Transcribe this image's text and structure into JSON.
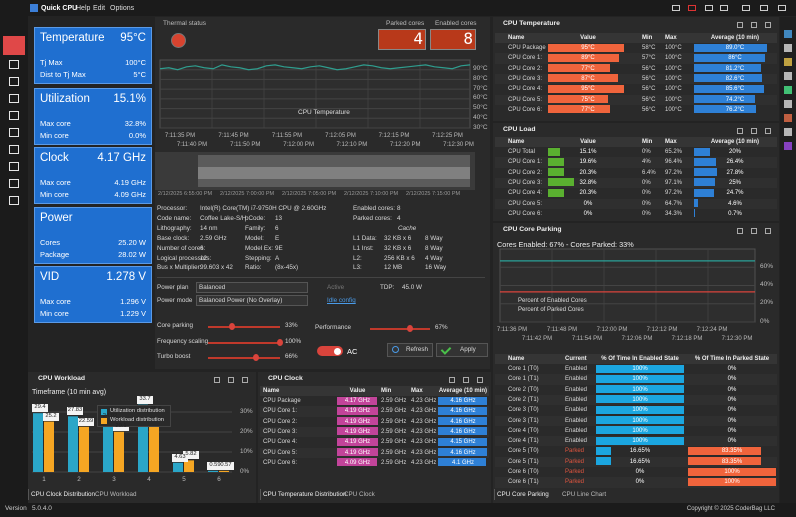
{
  "menu": {
    "app": "Quick CPU",
    "items": [
      "Help",
      "Edit",
      "Options"
    ]
  },
  "tiles": [
    {
      "title": "Temperature",
      "value": "95°C",
      "rows": [
        [
          "Tj Max",
          "100°C"
        ],
        [
          "Dist to Tj Max",
          "5°C"
        ]
      ]
    },
    {
      "title": "Utilization",
      "value": "15.1%",
      "rows": [
        [
          "Max core",
          "32.8%"
        ],
        [
          "Min core",
          "0.0%"
        ]
      ]
    },
    {
      "title": "Clock",
      "value": "4.17 GHz",
      "rows": [
        [
          "Max core",
          "4.19 GHz"
        ],
        [
          "Min core",
          "4.09 GHz"
        ]
      ]
    },
    {
      "title": "Power",
      "rows": [
        [
          "Cores",
          "25.20 W"
        ],
        [
          "Package",
          "28.02 W"
        ]
      ]
    },
    {
      "title": "VID",
      "value": "1.278 V",
      "rows": [
        [
          "Max core",
          "1.296 V"
        ],
        [
          "Min core",
          "1.229 V"
        ]
      ]
    }
  ],
  "thermal": {
    "title": "Thermal status",
    "parked_title": "Parked cores",
    "parked": "4",
    "enabled_title": "Enabled cores",
    "enabled": "8"
  },
  "temp_chart": {
    "type": "line",
    "series": [
      {
        "name": "CPU Temperature",
        "color": "#2f9e8f",
        "values": [
          91,
          92,
          90,
          93,
          94,
          92,
          91,
          95,
          93,
          92,
          90,
          91,
          94,
          95,
          93,
          92,
          91,
          93,
          94,
          92,
          90,
          91,
          93,
          95,
          94,
          92,
          91,
          92,
          93,
          94,
          95,
          93,
          92,
          91,
          94,
          95
        ]
      }
    ],
    "ylim": [
      30,
      100
    ],
    "yticks": [
      {
        "value": 30,
        "label": "30°C"
      },
      {
        "value": 40,
        "label": "40°C"
      },
      {
        "value": 50,
        "label": "50°C"
      },
      {
        "value": 60,
        "label": "60°C"
      },
      {
        "value": 70,
        "label": "70°C"
      },
      {
        "value": 80,
        "label": "80°C"
      },
      {
        "value": 90,
        "label": "90°C"
      }
    ],
    "x_top": [
      "7:11:35 PM",
      "7:11:45 PM",
      "7:11:55 PM",
      "7:12:05 PM",
      "7:12:15 PM",
      "7:12:25 PM"
    ],
    "x_bottom": [
      "7:11:40 PM",
      "7:11:50 PM",
      "7:12:00 PM",
      "7:12:10 PM",
      "7:12:20 PM",
      "7:12:30 PM"
    ],
    "overview": [
      "2/12/2025 6:55:00 PM",
      "2/12/2025 7:00:00 PM",
      "2/12/2025 7:05:00 PM",
      "2/12/2025 7:10:00 PM",
      "2/12/2025 7:15:00 PM"
    ]
  },
  "info": {
    "processor": [
      "Processor:",
      "Intel(R) Core(TM) i7-9750H CPU @ 2.60GHz"
    ],
    "specs": [
      [
        "Code name:",
        "Coffee Lake-S/H",
        "pCode:",
        "13"
      ],
      [
        "Lithography:",
        "14 nm",
        "Family:",
        "6"
      ],
      [
        "Base clock:",
        "2.59 GHz",
        "Model:",
        "E"
      ],
      [
        "Number of cores:",
        "6",
        "Model Ex:",
        "9E"
      ],
      [
        "Logical processors:",
        "12",
        "Stepping:",
        "A"
      ],
      [
        "Bus x Multiplier:",
        "99.603 x 42",
        "Ratio:",
        "(8x-45x)"
      ]
    ],
    "right": [
      [
        "Enabled cores:",
        "8"
      ],
      [
        "Parked cores:",
        "4"
      ]
    ],
    "cache_title": "Cache",
    "cache": [
      [
        "L1 Data:",
        "32 KB x 6",
        "8 Way"
      ],
      [
        "L1 Inst:",
        "32 KB x 6",
        "8 Way"
      ],
      [
        "L2:",
        "256 KB x 6",
        "4 Way"
      ],
      [
        "L3:",
        "12 MB",
        "16 Way"
      ]
    ]
  },
  "controls": {
    "power_plan": [
      "Power plan",
      "Balanced"
    ],
    "active": "Active",
    "tdp": [
      "TDP:",
      "45.0 W"
    ],
    "power_mode": [
      "Power mode",
      "Balanced Power (No Overlay)"
    ],
    "idle": "Idle config",
    "sliders": [
      {
        "name": "Core parking",
        "value": 33,
        "label": "33%"
      },
      {
        "name": "Frequency scaling",
        "value": 100,
        "label": "100%"
      },
      {
        "name": "Turbo boost",
        "value": 66,
        "label": "66%"
      },
      {
        "name": "Performance",
        "value": 67,
        "label": "67%"
      }
    ],
    "ac": "AC",
    "refresh": "Refresh",
    "apply": "Apply"
  },
  "temp_table": {
    "title": "CPU Temperature",
    "headers": [
      "Name",
      "Value",
      "Min",
      "Max",
      "Average (10 min)"
    ],
    "rows": [
      [
        "CPU Package",
        {
          "value": 95,
          "label": "95°C"
        },
        "58°C",
        {
          "value": 100,
          "label": "100°C"
        },
        {
          "value": 89.0,
          "label": "89.0°C"
        }
      ],
      [
        "CPU Core 1:",
        {
          "value": 89,
          "label": "89°C"
        },
        "57°C",
        {
          "value": 100,
          "label": "100°C"
        },
        {
          "value": 86,
          "label": "86°C"
        }
      ],
      [
        "CPU Core 2:",
        {
          "value": 77,
          "label": "77°C"
        },
        "56°C",
        {
          "value": 100,
          "label": "100°C"
        },
        {
          "value": 81.2,
          "label": "81.2°C"
        }
      ],
      [
        "CPU Core 3:",
        {
          "value": 87,
          "label": "87°C"
        },
        "56°C",
        {
          "value": 100,
          "label": "100°C"
        },
        {
          "value": 82.6,
          "label": "82.6°C"
        }
      ],
      [
        "CPU Core 4:",
        {
          "value": 95,
          "label": "95°C"
        },
        "56°C",
        {
          "value": 100,
          "label": "100°C"
        },
        {
          "value": 85.6,
          "label": "85.6°C"
        }
      ],
      [
        "CPU Core 5:",
        {
          "value": 75,
          "label": "75°C"
        },
        "56°C",
        {
          "value": 100,
          "label": "100°C"
        },
        {
          "value": 74.2,
          "label": "74.2°C"
        }
      ],
      [
        "CPU Core 6:",
        {
          "value": 77,
          "label": "77°C"
        },
        "56°C",
        {
          "value": 100,
          "label": "100°C"
        },
        {
          "value": 76.2,
          "label": "76.2°C"
        }
      ]
    ]
  },
  "load_table": {
    "title": "CPU Load",
    "headers": [
      "Name",
      "Value",
      "Min",
      "Max",
      "Average (10 min)"
    ],
    "rows": [
      [
        "CPU Total",
        {
          "value": 15.1,
          "label": "15.1%"
        },
        "0%",
        "65.2%",
        {
          "value": 20,
          "label": "20%"
        }
      ],
      [
        "CPU Core 1:",
        {
          "value": 19.6,
          "label": "19.6%"
        },
        "4%",
        "96.4%",
        {
          "value": 26.4,
          "label": "26.4%"
        }
      ],
      [
        "CPU Core 2:",
        {
          "value": 20.3,
          "label": "20.3%"
        },
        "6.4%",
        "97.2%",
        {
          "value": 27.8,
          "label": "27.8%"
        }
      ],
      [
        "CPU Core 3:",
        {
          "value": 32.8,
          "label": "32.8%"
        },
        "0%",
        "97.1%",
        {
          "value": 25,
          "label": "25%"
        }
      ],
      [
        "CPU Core 4:",
        {
          "value": 20.3,
          "label": "20.3%"
        },
        "0%",
        "97.2%",
        {
          "value": 24.7,
          "label": "24.7%"
        }
      ],
      [
        "CPU Core 5:",
        {
          "value": 0,
          "label": "0%"
        },
        "0%",
        "64.7%",
        {
          "value": 4.6,
          "label": "4.6%"
        }
      ],
      [
        "CPU Core 6:",
        {
          "value": 0,
          "label": "0%"
        },
        "0%",
        "34.3%",
        {
          "value": 0.7,
          "label": "0.7%"
        }
      ]
    ]
  },
  "parking": {
    "title": "CPU Core Parking",
    "subtitle": "Cores Enabled: 67% - Cores Parked: 33%",
    "chart": {
      "type": "line",
      "series": [
        {
          "name": "Percent of Enabled Cores",
          "color": "#2aa198",
          "values": [
            67,
            67,
            67,
            67,
            67,
            67,
            67,
            67,
            67,
            67,
            67,
            67
          ]
        },
        {
          "name": "Percent of Parked Cores",
          "color": "#d9443c",
          "values": [
            33,
            33,
            33,
            33,
            33,
            33,
            33,
            33,
            33,
            33,
            33,
            33
          ]
        }
      ],
      "ylim": [
        0,
        80
      ],
      "yticks": [
        {
          "value": 0,
          "label": "0%"
        },
        {
          "value": 20,
          "label": "20%"
        },
        {
          "value": 40,
          "label": "40%"
        },
        {
          "value": 60,
          "label": "60%"
        }
      ],
      "x_top": [
        "7:11:36 PM",
        "7:11:48 PM",
        "7:12:00 PM",
        "7:12:12 PM",
        "7:12:24 PM"
      ],
      "x_bottom": [
        "7:11:42 PM",
        "7:11:54 PM",
        "7:12:06 PM",
        "7:12:18 PM",
        "7:12:30 PM"
      ]
    },
    "headers": [
      "Name",
      "Current",
      "% Of Time In Enabled State",
      "% Of Time In Parked State"
    ],
    "rows": [
      [
        "Core 1 (T0)",
        "Enabled",
        {
          "value": 100,
          "label": "100%"
        },
        {
          "value": 0,
          "label": "0%"
        }
      ],
      [
        "Core 1 (T1)",
        "Enabled",
        {
          "value": 100,
          "label": "100%"
        },
        {
          "value": 0,
          "label": "0%"
        }
      ],
      [
        "Core 2 (T0)",
        "Enabled",
        {
          "value": 100,
          "label": "100%"
        },
        {
          "value": 0,
          "label": "0%"
        }
      ],
      [
        "Core 2 (T1)",
        "Enabled",
        {
          "value": 100,
          "label": "100%"
        },
        {
          "value": 0,
          "label": "0%"
        }
      ],
      [
        "Core 3 (T0)",
        "Enabled",
        {
          "value": 100,
          "label": "100%"
        },
        {
          "value": 0,
          "label": "0%"
        }
      ],
      [
        "Core 3 (T1)",
        "Enabled",
        {
          "value": 100,
          "label": "100%"
        },
        {
          "value": 0,
          "label": "0%"
        }
      ],
      [
        "Core 4 (T0)",
        "Enabled",
        {
          "value": 100,
          "label": "100%"
        },
        {
          "value": 0,
          "label": "0%"
        }
      ],
      [
        "Core 4 (T1)",
        "Enabled",
        {
          "value": 100,
          "label": "100%"
        },
        {
          "value": 0,
          "label": "0%"
        }
      ],
      [
        "Core 5 (T0)",
        "Parked",
        {
          "value": 16.65,
          "label": "16.65%"
        },
        {
          "value": 83.35,
          "label": "83.35%"
        }
      ],
      [
        "Core 5 (T1)",
        "Parked",
        {
          "value": 16.65,
          "label": "16.65%"
        },
        {
          "value": 83.35,
          "label": "83.35%"
        }
      ],
      [
        "Core 6 (T0)",
        "Parked",
        {
          "value": 0,
          "label": "0%"
        },
        {
          "value": 100,
          "label": "100%"
        }
      ],
      [
        "Core 6 (T1)",
        "Parked",
        {
          "value": 0,
          "label": "0%"
        },
        {
          "value": 100,
          "label": "100%"
        }
      ]
    ],
    "tabs": [
      "CPU Core Parking",
      "CPU Line Chart"
    ]
  },
  "workload": {
    "title": "CPU Workload",
    "subtitle": "Timeframe (10 min avg)",
    "chart": {
      "type": "bar",
      "categories": [
        "1",
        "2",
        "3",
        "4",
        "5",
        "6"
      ],
      "series": [
        {
          "name": "Utilization distribution",
          "color": "#2aa6c8",
          "values": [
            29.4,
            27.83,
            24.92,
            33.7,
            4.63,
            0.59
          ]
        },
        {
          "name": "Workload distribution",
          "color": "#f5a623",
          "values": [
            25.2,
            22.59,
            20.1,
            28.5,
            5.82,
            0.57
          ]
        }
      ],
      "ylim": [
        0,
        35
      ],
      "yticks": [
        {
          "value": 0,
          "label": "0%"
        },
        {
          "value": 10,
          "label": "10%"
        },
        {
          "value": 20,
          "label": "20%"
        },
        {
          "value": 30,
          "label": "30%"
        }
      ]
    },
    "tabs": [
      "CPU Clock Distribution",
      "CPU Workload"
    ]
  },
  "clock_table": {
    "title": "CPU Clock",
    "headers": [
      "Name",
      "Value",
      "Min",
      "Max",
      "Average (10 min)"
    ],
    "rows": [
      [
        "CPU Package",
        {
          "value": 4.17,
          "label": "4.17 GHz"
        },
        "2.59 GHz",
        {
          "value": 4.23,
          "label": "4.23 GHz"
        },
        {
          "value": 4.16,
          "label": "4.16 GHz"
        }
      ],
      [
        "CPU Core 1:",
        {
          "value": 4.19,
          "label": "4.19 GHz"
        },
        "2.59 GHz",
        {
          "value": 4.23,
          "label": "4.23 GHz"
        },
        {
          "value": 4.16,
          "label": "4.16 GHz"
        }
      ],
      [
        "CPU Core 2:",
        {
          "value": 4.19,
          "label": "4.19 GHz"
        },
        "2.59 GHz",
        {
          "value": 4.23,
          "label": "4.23 GHz"
        },
        {
          "value": 4.16,
          "label": "4.16 GHz"
        }
      ],
      [
        "CPU Core 3:",
        {
          "value": 4.19,
          "label": "4.19 GHz"
        },
        "2.59 GHz",
        {
          "value": 4.23,
          "label": "4.23 GHz"
        },
        {
          "value": 4.16,
          "label": "4.16 GHz"
        }
      ],
      [
        "CPU Core 4:",
        {
          "value": 4.19,
          "label": "4.19 GHz"
        },
        "2.59 GHz",
        {
          "value": 4.23,
          "label": "4.23 GHz"
        },
        {
          "value": 4.15,
          "label": "4.15 GHz"
        }
      ],
      [
        "CPU Core 5:",
        {
          "value": 4.19,
          "label": "4.19 GHz"
        },
        "2.59 GHz",
        {
          "value": 4.23,
          "label": "4.23 GHz"
        },
        {
          "value": 4.16,
          "label": "4.16 GHz"
        }
      ],
      [
        "CPU Core 6:",
        {
          "value": 4.09,
          "label": "4.09 GHz"
        },
        "2.59 GHz",
        {
          "value": 4.23,
          "label": "4.23 GHz"
        },
        {
          "value": 4.1,
          "label": "4.1 GHz"
        }
      ]
    ],
    "tabs": [
      "CPU Temperature Distribution",
      "CPU Clock"
    ]
  },
  "footer": {
    "version_label": "Version",
    "version": "5.0.4.0",
    "copyright": "Copyright © 2025 CoderBag LLC"
  }
}
